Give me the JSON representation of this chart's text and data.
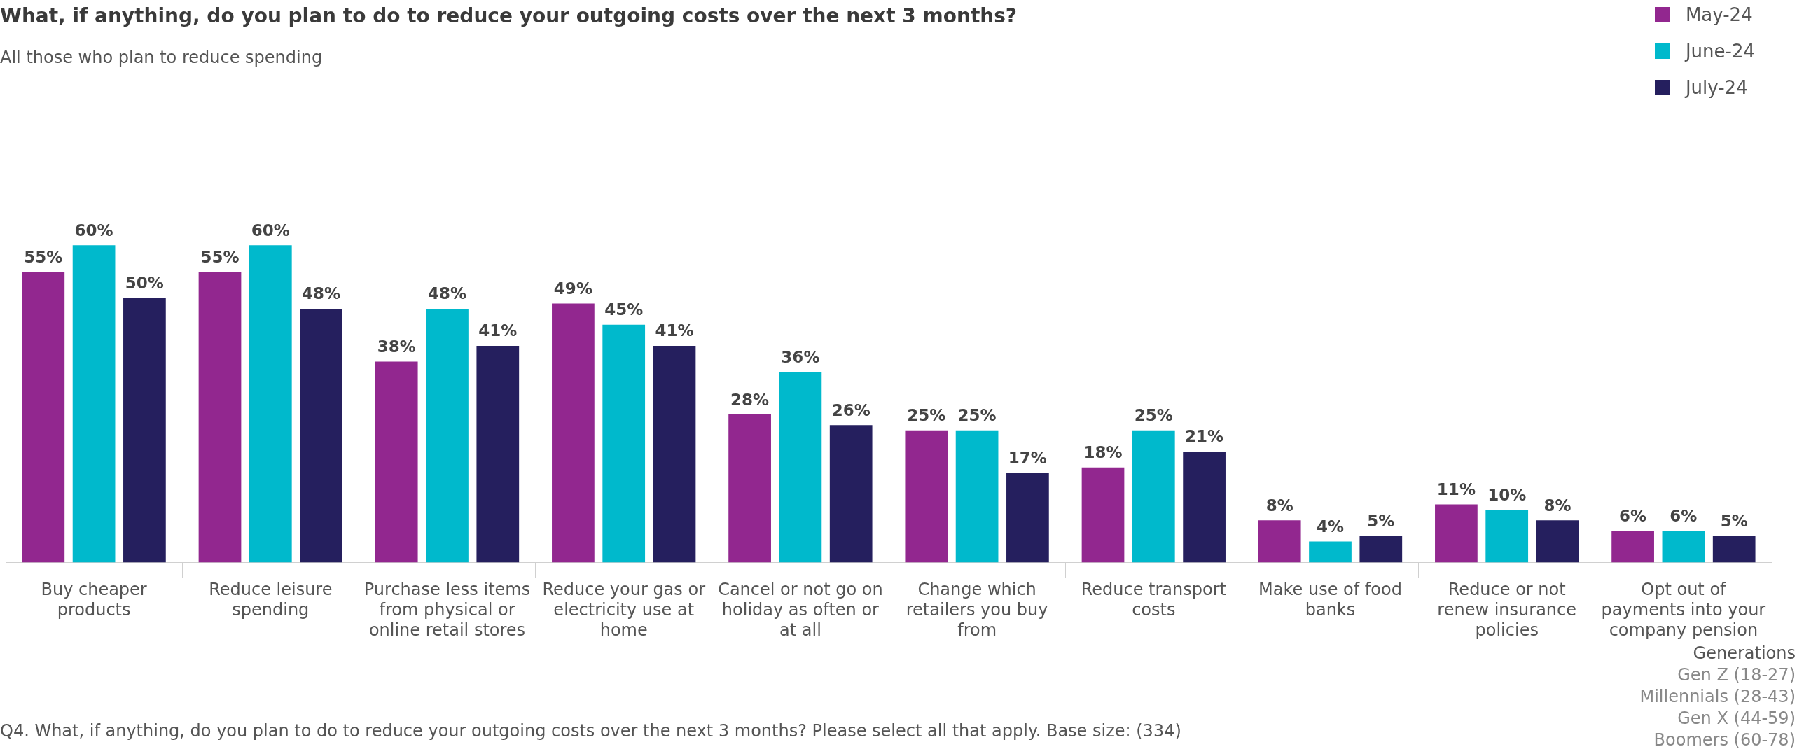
{
  "chart_data": {
    "type": "bar",
    "title": "What, if anything, do you plan to do to reduce your outgoing costs over the next 3 months?",
    "subtitle": "All those who plan to reduce spending",
    "categories": [
      "Buy cheaper products",
      "Reduce leisure spending",
      "Purchase less items from physical or online retail stores",
      "Reduce your gas or electricity use at home",
      "Cancel or not go on holiday as often or at all",
      "Change which retailers you buy from",
      "Reduce transport costs",
      "Make use of food banks",
      "Reduce or not renew insurance policies",
      "Opt out of payments into your company pension"
    ],
    "series": [
      {
        "name": "May-24",
        "color": "#92278f",
        "values": [
          55,
          55,
          38,
          49,
          28,
          25,
          18,
          8,
          11,
          6
        ],
        "value_labels": [
          "55%",
          "55%",
          "38%",
          "49%",
          "28%",
          "25%",
          "18%",
          "8%",
          "11%",
          "6%"
        ]
      },
      {
        "name": "June-24",
        "color": "#00b9cc",
        "values": [
          60,
          60,
          48,
          45,
          36,
          25,
          25,
          4,
          10,
          6
        ],
        "value_labels": [
          "60%",
          "60%",
          "48%",
          "45%",
          "36%",
          "25%",
          "25%",
          "4%",
          "10%",
          "6%"
        ]
      },
      {
        "name": "July-24",
        "color": "#251f5e",
        "values": [
          50,
          48,
          41,
          41,
          26,
          17,
          21,
          5,
          8,
          5
        ],
        "value_labels": [
          "50%",
          "48%",
          "41%",
          "41%",
          "26%",
          "17%",
          "21%",
          "5%",
          "8%",
          "5%"
        ]
      }
    ],
    "legend": "top right",
    "annotations": [
      "Q4. What, if anything, do you plan to do to reduce your outgoing costs over the next 3 months? Please select all that apply. Base size: (334)",
      "Generations",
      "Gen Z (18-27)",
      "Millennials (28-43)",
      "Gen X (44-59)",
      "Boomers (60-78)"
    ]
  }
}
